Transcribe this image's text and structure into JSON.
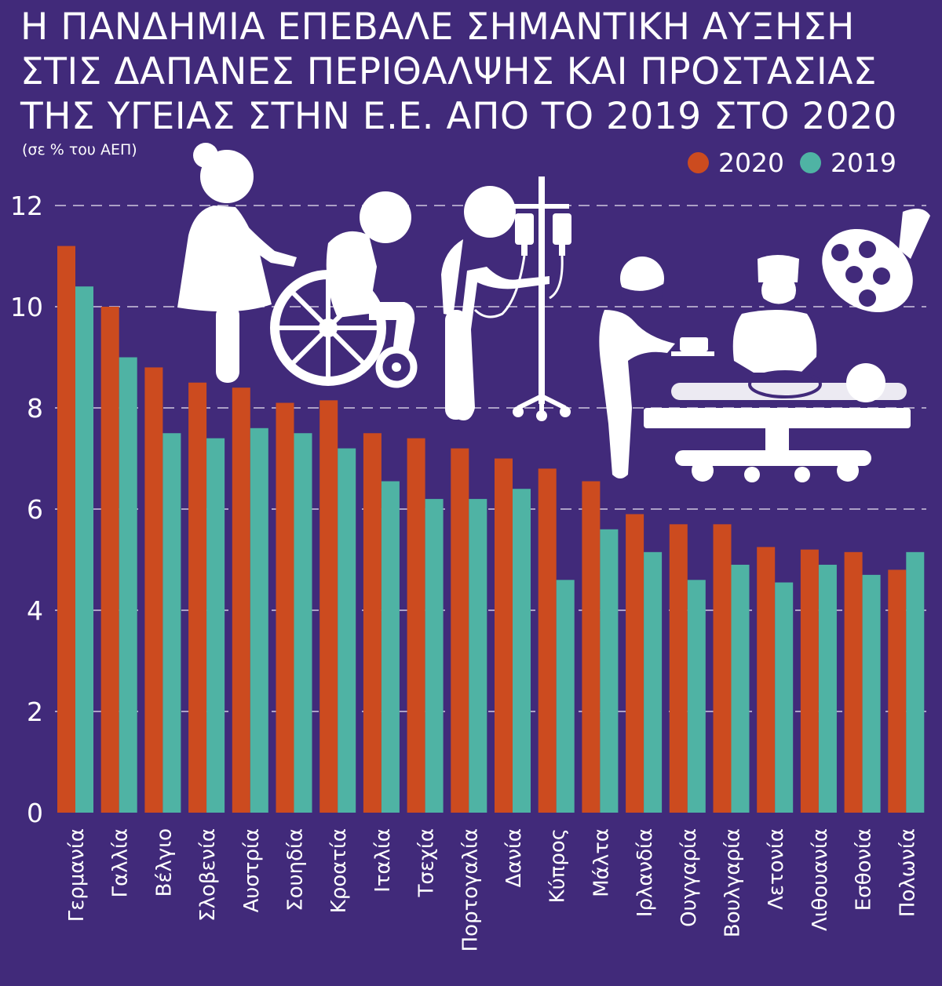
{
  "title": "Η ΠΑΝΔΗΜΙΑ ΕΠΕΒΑΛΕ ΣΗΜΑΝΤΙΚΗ ΑΥΞΗΣΗ\nΣΤΙΣ ΔΑΠΑΝΕΣ ΠΕΡΙΘΑΛΨΗΣ ΚΑΙ ΠΡΟΣΤΑΣΙΑΣ\nΤΗΣ ΥΓΕΙΑΣ ΣΤΗΝ Ε.Ε. ΑΠΟ ΤΟ 2019 ΣΤΟ 2020",
  "subtitle": "(σε % του ΑΕΠ)",
  "colors": {
    "background": "#412a7a",
    "series_2020": "#cc4b1f",
    "series_2019": "#4fb3a4",
    "gridline": "#cfc8e0",
    "icon": "#ffffff"
  },
  "icons": [
    "nurse-with-wheelchair-icon",
    "patient-with-iv-drip-icon",
    "surgeons-operating-icon",
    "surgical-lamp-icon"
  ],
  "chart_data": {
    "type": "bar",
    "title": "Η ΠΑΝΔΗΜΙΑ ΕΠΕΒΑΛΕ ΣΗΜΑΝΤΙΚΗ ΑΥΞΗΣΗ ΣΤΙΣ ΔΑΠΑΝΕΣ ΠΕΡΙΘΑΛΨΗΣ ΚΑΙ ΠΡΟΣΤΑΣΙΑΣ ΤΗΣ ΥΓΕΙΑΣ ΣΤΗΝ Ε.Ε. ΑΠΟ ΤΟ 2019 ΣΤΟ 2020",
    "subtitle": "(σε % του ΑΕΠ)",
    "categories": [
      "Γερμανία",
      "Γαλλία",
      "Βέλγιο",
      "Σλοβενία",
      "Αυστρία",
      "Σουηδία",
      "Κροατία",
      "Ιταλία",
      "Τσεχία",
      "Πορτογαλία",
      "Δανία",
      "Κύπρος",
      "Μάλτα",
      "Ιρλανδία",
      "Ουγγαρία",
      "Βουλγαρία",
      "Λετονία",
      "Λιθουανία",
      "Εσθονία",
      "Πολωνία"
    ],
    "series": [
      {
        "name": "2020",
        "values": [
          11.2,
          10.0,
          8.8,
          8.5,
          8.4,
          8.1,
          8.15,
          7.5,
          7.4,
          7.2,
          7.0,
          6.8,
          6.55,
          5.9,
          5.7,
          5.7,
          5.25,
          5.2,
          5.15,
          4.8
        ]
      },
      {
        "name": "2019",
        "values": [
          10.4,
          9.0,
          7.5,
          7.4,
          7.6,
          7.5,
          7.2,
          6.55,
          6.2,
          6.2,
          6.4,
          4.6,
          5.6,
          5.15,
          4.6,
          4.9,
          4.55,
          4.9,
          4.7,
          5.15
        ]
      }
    ],
    "yticks": [
      0,
      2,
      4,
      6,
      8,
      10,
      12
    ],
    "ylim": [
      0,
      12
    ],
    "grid": true,
    "legend": "top-right"
  }
}
